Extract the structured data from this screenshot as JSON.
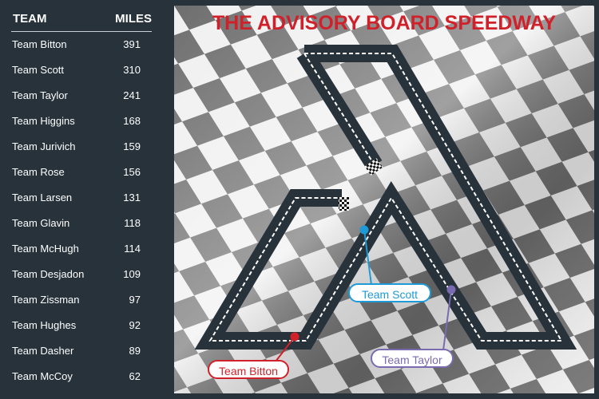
{
  "title": "THE ADVISORY BOARD SPEEDWAY",
  "sidebar": {
    "team_header": "TEAM",
    "miles_header": "MILES",
    "rows": [
      {
        "team": "Team Bitton",
        "miles": "391"
      },
      {
        "team": "Team Scott",
        "miles": "310"
      },
      {
        "team": "Team Taylor",
        "miles": "241"
      },
      {
        "team": "Team Higgins",
        "miles": "168"
      },
      {
        "team": "Team Jurivich",
        "miles": "159"
      },
      {
        "team": "Team Rose",
        "miles": "156"
      },
      {
        "team": "Team Larsen",
        "miles": "131"
      },
      {
        "team": "Team Glavin",
        "miles": "118"
      },
      {
        "team": "Team McHugh",
        "miles": "114"
      },
      {
        "team": "Team Desjadon",
        "miles": "109"
      },
      {
        "team": "Team Zissman",
        "miles": "97"
      },
      {
        "team": "Team Hughes",
        "miles": "92"
      },
      {
        "team": "Team Dasher",
        "miles": "89"
      },
      {
        "team": "Team McCoy",
        "miles": "62"
      }
    ]
  },
  "markers": [
    {
      "label": "Team Bitton",
      "color": "#d0202a"
    },
    {
      "label": "Team Scott",
      "color": "#1e9ad6"
    },
    {
      "label": "Team Taylor",
      "color": "#7a6bb0"
    }
  ],
  "colors": {
    "title": "#d0202a",
    "sidebar_bg": "#27323b",
    "track_road": "#27323b"
  }
}
